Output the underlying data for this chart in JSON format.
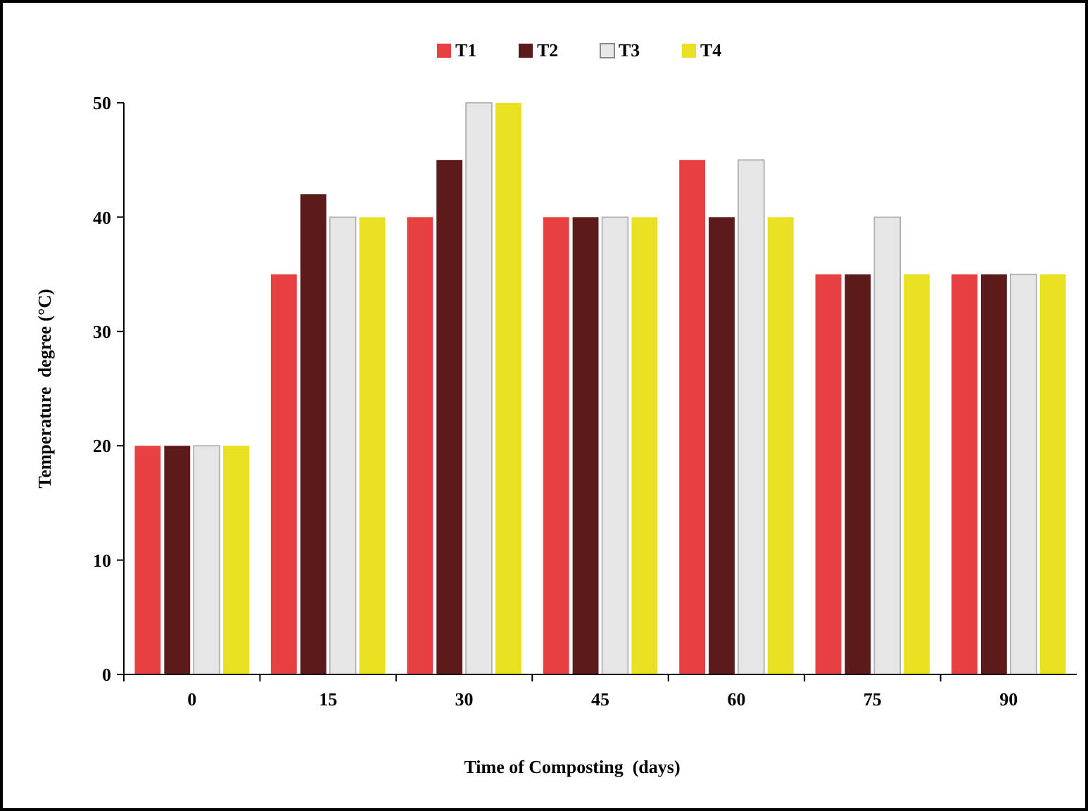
{
  "chart_data": {
    "type": "bar",
    "xlabel": "Time of Composting  (days)",
    "ylabel": "Temperature  degree (°C)",
    "categories": [
      "0",
      "15",
      "30",
      "45",
      "60",
      "75",
      "90"
    ],
    "series": [
      {
        "name": "T1",
        "color": "#e84040",
        "values": [
          20,
          35,
          40,
          40,
          45,
          35,
          35
        ]
      },
      {
        "name": "T2",
        "color": "#5c1a1a",
        "values": [
          20,
          42,
          45,
          40,
          40,
          35,
          35
        ]
      },
      {
        "name": "T3",
        "color": "#e6e6e6",
        "values": [
          20,
          40,
          50,
          40,
          45,
          40,
          35
        ]
      },
      {
        "name": "T4",
        "color": "#e8e020",
        "values": [
          20,
          40,
          50,
          40,
          40,
          35,
          35
        ]
      }
    ],
    "ylim": [
      0,
      50
    ],
    "yticks": [
      0,
      10,
      20,
      30,
      40,
      50
    ],
    "grid": false,
    "legend": "top"
  }
}
